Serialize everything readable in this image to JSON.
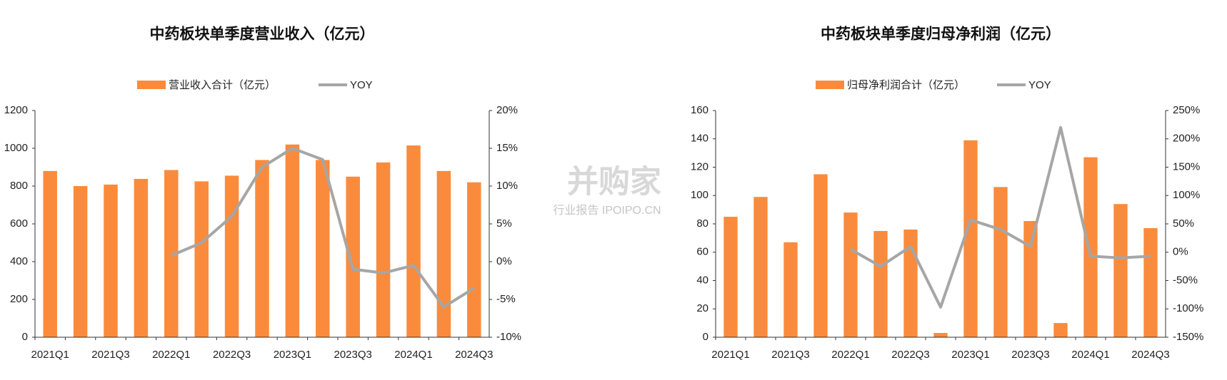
{
  "watermark": [
    "并购家",
    "行业报告 IPOIPO.CN"
  ],
  "chart_data": [
    {
      "type": "combo",
      "title": "中药板块单季度营业收入（亿元）",
      "categories": [
        "2021Q1",
        null,
        "2021Q3",
        null,
        "2022Q1",
        null,
        "2022Q3",
        null,
        "2023Q1",
        null,
        "2023Q3",
        null,
        "2024Q1",
        null,
        "2024Q3"
      ],
      "series": [
        {
          "name": "营业收入合计（亿元）",
          "type": "bar",
          "color": "#fa8b3c",
          "values": [
            880,
            800,
            808,
            838,
            885,
            825,
            855,
            938,
            1020,
            938,
            850,
            925,
            1015,
            880,
            820
          ]
        },
        {
          "name": "YOY",
          "type": "line",
          "color": "#a6a6a6",
          "axis": "y2",
          "values": [
            null,
            null,
            null,
            null,
            0.8,
            2.5,
            6,
            12.5,
            15,
            13.5,
            -1,
            -1.5,
            -0.5,
            -6,
            -3.5
          ]
        }
      ],
      "ylim": [
        0,
        1200
      ],
      "yticks": [
        0,
        200,
        400,
        600,
        800,
        1000,
        1200
      ],
      "y2lim": [
        -10,
        20
      ],
      "y2ticks": [
        {
          "value": -10,
          "label": "-10%"
        },
        {
          "value": -5,
          "label": "-5%"
        },
        {
          "value": 0,
          "label": "0%"
        },
        {
          "value": 5,
          "label": "5%"
        },
        {
          "value": 10,
          "label": "10%"
        },
        {
          "value": 15,
          "label": "15%"
        },
        {
          "value": 20,
          "label": "20%"
        }
      ],
      "grid": false,
      "legend": "top"
    },
    {
      "type": "combo",
      "title": "中药板块单季度归母净利润（亿元）",
      "categories": [
        "2021Q1",
        null,
        "2021Q3",
        null,
        "2022Q1",
        null,
        "2022Q3",
        null,
        "2023Q1",
        null,
        "2023Q3",
        null,
        "2024Q1",
        null,
        "2024Q3"
      ],
      "series": [
        {
          "name": "归母净利润合计（亿元）",
          "type": "bar",
          "color": "#fa8b3c",
          "values": [
            85,
            99,
            67,
            115,
            88,
            75,
            76,
            3,
            139,
            106,
            82,
            10,
            127,
            94,
            77
          ]
        },
        {
          "name": "YOY",
          "type": "line",
          "color": "#a6a6a6",
          "axis": "y2",
          "values": [
            null,
            null,
            null,
            null,
            5,
            -25,
            10,
            -97,
            57,
            40,
            10,
            220,
            -7,
            -10,
            -7
          ]
        }
      ],
      "ylim": [
        0,
        160
      ],
      "yticks": [
        0,
        20,
        40,
        60,
        80,
        100,
        120,
        140,
        160
      ],
      "y2lim": [
        -150,
        250
      ],
      "y2ticks": [
        {
          "value": -150,
          "label": "-150%"
        },
        {
          "value": -100,
          "label": "-100%"
        },
        {
          "value": -50,
          "label": "-50%"
        },
        {
          "value": 0,
          "label": "0%"
        },
        {
          "value": 50,
          "label": "50%"
        },
        {
          "value": 100,
          "label": "100%"
        },
        {
          "value": 150,
          "label": "150%"
        },
        {
          "value": 200,
          "label": "200%"
        },
        {
          "value": 250,
          "label": "250%"
        }
      ],
      "grid": false,
      "legend": "top"
    }
  ]
}
